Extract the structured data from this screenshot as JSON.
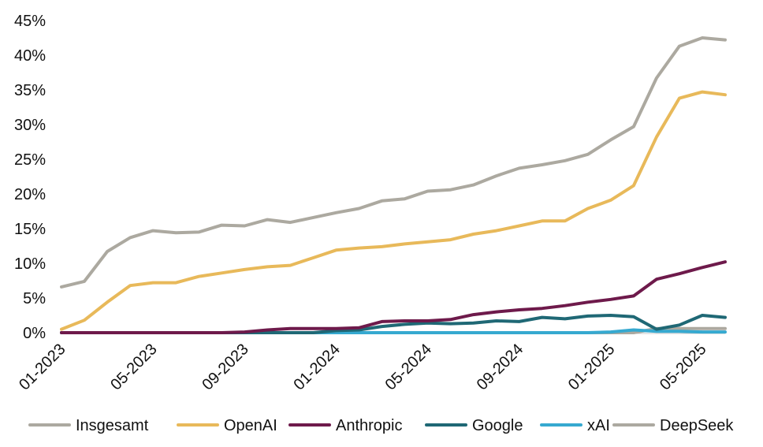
{
  "chart_data": {
    "type": "line",
    "title": "",
    "xlabel": "",
    "ylabel": "",
    "ylim": [
      0,
      45
    ],
    "y_ticks": [
      "0%",
      "5%",
      "10%",
      "15%",
      "20%",
      "25%",
      "30%",
      "35%",
      "40%",
      "45%"
    ],
    "y_tick_values": [
      0,
      5,
      10,
      15,
      20,
      25,
      30,
      35,
      40,
      45
    ],
    "x_tick_labels": [
      "01-2023",
      "05-2023",
      "09-2023",
      "01-2024",
      "05-2024",
      "09-2024",
      "01-2025",
      "05-2025"
    ],
    "x_tick_indices": [
      0,
      4,
      8,
      12,
      16,
      20,
      24,
      28
    ],
    "x": [
      "01-2023",
      "02-2023",
      "03-2023",
      "04-2023",
      "05-2023",
      "06-2023",
      "07-2023",
      "08-2023",
      "09-2023",
      "10-2023",
      "11-2023",
      "12-2023",
      "01-2024",
      "02-2024",
      "03-2024",
      "04-2024",
      "05-2024",
      "06-2024",
      "07-2024",
      "08-2024",
      "09-2024",
      "10-2024",
      "11-2024",
      "12-2024",
      "01-2025",
      "02-2025",
      "03-2025",
      "04-2025",
      "05-2025",
      "06-2025"
    ],
    "grid": false,
    "legend_position": "bottom",
    "series": [
      {
        "name": "Insgesamt",
        "color": "#aca9a0",
        "values": [
          6.6,
          7.4,
          11.7,
          13.7,
          14.7,
          14.4,
          14.5,
          15.5,
          15.4,
          16.3,
          15.9,
          16.6,
          17.3,
          17.9,
          19.0,
          19.3,
          20.4,
          20.6,
          21.3,
          22.6,
          23.7,
          24.2,
          24.8,
          25.7,
          27.8,
          29.7,
          36.7,
          41.3,
          42.5,
          42.2
        ]
      },
      {
        "name": "OpenAI",
        "color": "#e8b95a",
        "values": [
          0.5,
          1.8,
          4.4,
          6.8,
          7.2,
          7.2,
          8.1,
          8.6,
          9.1,
          9.5,
          9.7,
          10.8,
          11.9,
          12.2,
          12.4,
          12.8,
          13.1,
          13.4,
          14.2,
          14.7,
          15.4,
          16.1,
          16.1,
          17.9,
          19.1,
          21.2,
          28.2,
          33.8,
          34.7,
          34.3
        ]
      },
      {
        "name": "Anthropic",
        "color": "#6e1a4b",
        "values": [
          0,
          0,
          0,
          0,
          0,
          0,
          0,
          0,
          0.1,
          0.4,
          0.6,
          0.6,
          0.6,
          0.7,
          1.6,
          1.7,
          1.7,
          1.9,
          2.6,
          3.0,
          3.3,
          3.5,
          3.9,
          4.4,
          4.8,
          5.3,
          7.7,
          8.5,
          9.4,
          10.2
        ]
      },
      {
        "name": "Google",
        "color": "#1f6875",
        "values": [
          0,
          0,
          0,
          0,
          0,
          0,
          0,
          0,
          0,
          0,
          0,
          0,
          0.3,
          0.4,
          0.9,
          1.2,
          1.4,
          1.3,
          1.4,
          1.7,
          1.6,
          2.2,
          2.0,
          2.4,
          2.5,
          2.3,
          0.5,
          1.1,
          2.5,
          2.2
        ]
      },
      {
        "name": "xAI",
        "color": "#36a9d0",
        "values": [
          0,
          0,
          0,
          0,
          0,
          0,
          0,
          0,
          0,
          0,
          0,
          0,
          0,
          0,
          0,
          0,
          0,
          0,
          0,
          0,
          0,
          0,
          0,
          0,
          0.1,
          0.4,
          0.2,
          0.2,
          0.1,
          0.1
        ]
      },
      {
        "name": "DeepSeek",
        "color": "#aca9a0",
        "values": [
          0,
          0,
          0,
          0,
          0,
          0,
          0,
          0,
          0,
          0,
          0,
          0,
          0,
          0,
          0,
          0,
          0,
          0,
          0,
          0,
          0,
          0,
          0,
          0,
          0,
          0,
          0.6,
          0.6,
          0.6,
          0.6
        ]
      }
    ]
  }
}
